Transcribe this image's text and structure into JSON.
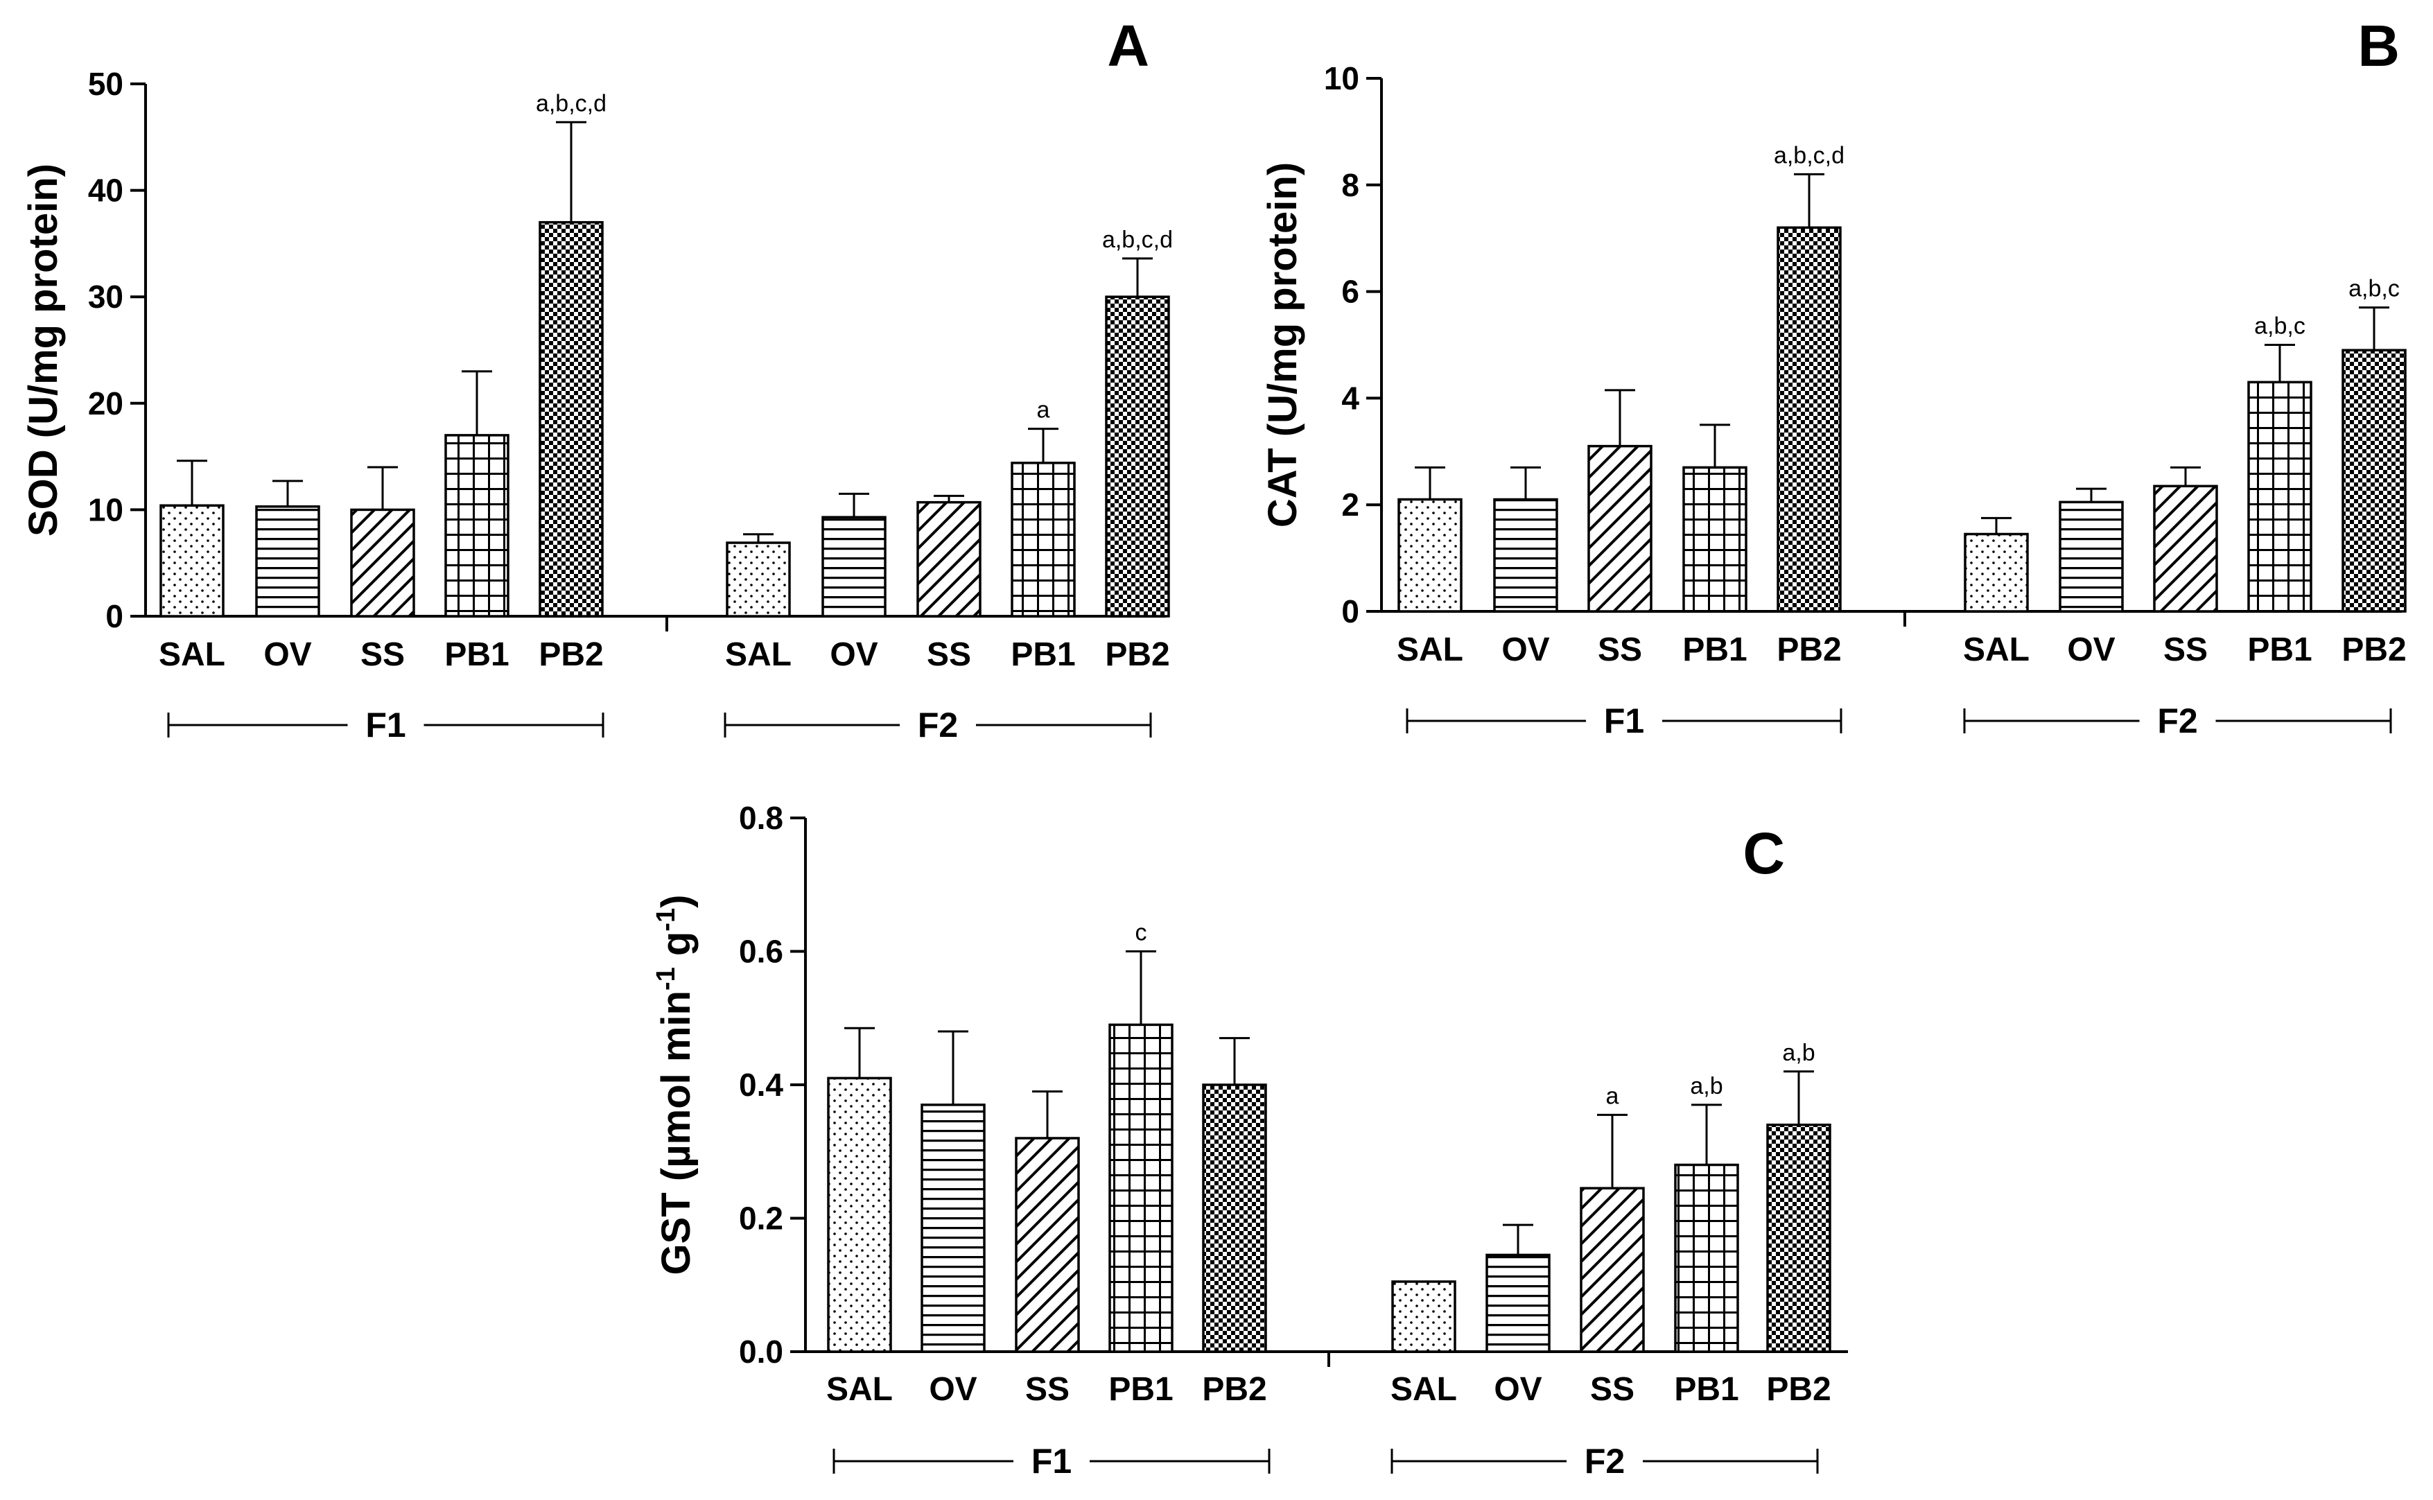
{
  "chart_data": [
    {
      "type": "bar",
      "panel": "A",
      "ylabel": "SOD (U/mg protein)",
      "ylim": [
        0,
        50
      ],
      "yticks": [
        0,
        10,
        20,
        30,
        40,
        50
      ],
      "categories": [
        "SAL",
        "OV",
        "SS",
        "PB1",
        "PB2"
      ],
      "groups": [
        "F1",
        "F2"
      ],
      "series": [
        {
          "group": "F1",
          "values": [
            10.4,
            10.3,
            10.0,
            17.0,
            37.0
          ],
          "errors": [
            4.2,
            2.4,
            4.0,
            6.0,
            9.4
          ],
          "annotations": [
            "",
            "",
            "",
            "",
            "a,b,c,d"
          ]
        },
        {
          "group": "F2",
          "values": [
            6.9,
            9.3,
            10.7,
            14.4,
            30.0
          ],
          "errors": [
            0.8,
            2.2,
            0.6,
            3.2,
            3.6
          ],
          "annotations": [
            "",
            "",
            "",
            "a",
            "a,b,c,d"
          ]
        }
      ]
    },
    {
      "type": "bar",
      "panel": "B",
      "ylabel": "CAT (U/mg protein)",
      "ylim": [
        0,
        10
      ],
      "yticks": [
        0,
        2,
        4,
        6,
        8,
        10
      ],
      "categories": [
        "SAL",
        "OV",
        "SS",
        "PB1",
        "PB2"
      ],
      "groups": [
        "F1",
        "F2"
      ],
      "series": [
        {
          "group": "F1",
          "values": [
            2.1,
            2.1,
            3.1,
            2.7,
            7.2
          ],
          "errors": [
            0.6,
            0.6,
            1.05,
            0.8,
            1.0
          ],
          "annotations": [
            "",
            "",
            "",
            "",
            "a,b,c,d"
          ]
        },
        {
          "group": "F2",
          "values": [
            1.45,
            2.05,
            2.35,
            4.3,
            4.9
          ],
          "errors": [
            0.3,
            0.25,
            0.35,
            0.7,
            0.8
          ],
          "annotations": [
            "",
            "",
            "",
            "a,b,c",
            "a,b,c"
          ]
        }
      ]
    },
    {
      "type": "bar",
      "panel": "C",
      "ylabel": "GST (µmol min-1 g-1)",
      "ylim": [
        0,
        0.8
      ],
      "yticks": [
        "0.0",
        "0.2",
        "0.4",
        "0.6",
        "0.8"
      ],
      "categories": [
        "SAL",
        "OV",
        "SS",
        "PB1",
        "PB2"
      ],
      "groups": [
        "F1",
        "F2"
      ],
      "series": [
        {
          "group": "F1",
          "values": [
            0.41,
            0.37,
            0.32,
            0.49,
            0.4
          ],
          "errors": [
            0.075,
            0.11,
            0.07,
            0.11,
            0.07
          ],
          "annotations": [
            "",
            "",
            "",
            "c",
            ""
          ]
        },
        {
          "group": "F2",
          "values": [
            0.105,
            0.145,
            0.245,
            0.28,
            0.34
          ],
          "errors": [
            0.0,
            0.045,
            0.11,
            0.09,
            0.08
          ],
          "annotations": [
            "",
            "",
            "a",
            "a,b",
            "a,b"
          ]
        }
      ]
    }
  ],
  "ylabel_c_parts": {
    "pre": "GST (µmol min",
    "exp1": "-1",
    "mid": " g",
    "exp2": "-1",
    "post": ")"
  }
}
